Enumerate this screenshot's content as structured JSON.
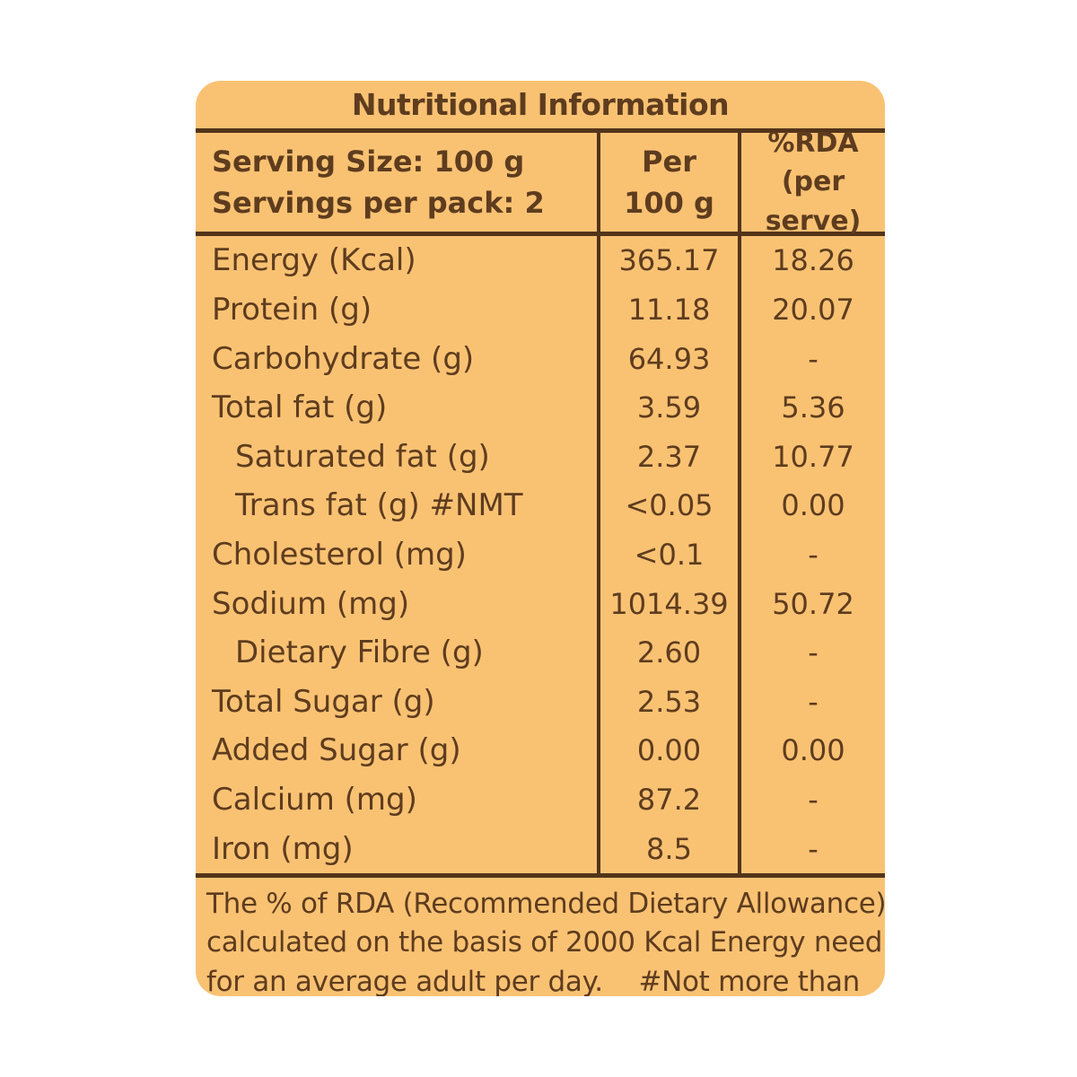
{
  "colors": {
    "page_background": "#ffffff",
    "panel_background": "#f9c273",
    "rule_color": "#53341a",
    "text_color": "#5e3c1e"
  },
  "title": "Nutritional Information",
  "header": {
    "serving_size": "Serving Size: 100 g",
    "servings_per_pack": "Servings per pack: 2",
    "per_col_line1": "Per",
    "per_col_line2": "100 g",
    "rda_col_line1": "%RDA",
    "rda_col_line2": "(per serve)"
  },
  "rows": [
    {
      "label": "Energy (Kcal)",
      "per_100g": "365.17",
      "rda_per_serve": "18.26",
      "indent": false
    },
    {
      "label": "Protein (g)",
      "per_100g": "11.18",
      "rda_per_serve": "20.07",
      "indent": false
    },
    {
      "label": "Carbohydrate (g)",
      "per_100g": "64.93",
      "rda_per_serve": "-",
      "indent": false
    },
    {
      "label": "Total fat (g)",
      "per_100g": "3.59",
      "rda_per_serve": "5.36",
      "indent": false
    },
    {
      "label": "Saturated fat (g)",
      "per_100g": "2.37",
      "rda_per_serve": "10.77",
      "indent": true
    },
    {
      "label": "Trans fat (g) #NMT",
      "per_100g": "<0.05",
      "rda_per_serve": "0.00",
      "indent": true
    },
    {
      "label": "Cholesterol (mg)",
      "per_100g": "<0.1",
      "rda_per_serve": "-",
      "indent": false
    },
    {
      "label": "Sodium (mg)",
      "per_100g": "1014.39",
      "rda_per_serve": "50.72",
      "indent": false
    },
    {
      "label": "Dietary Fibre (g)",
      "per_100g": "2.60",
      "rda_per_serve": "-",
      "indent": true
    },
    {
      "label": "Total Sugar (g)",
      "per_100g": "2.53",
      "rda_per_serve": "-",
      "indent": false
    },
    {
      "label": "Added Sugar (g)",
      "per_100g": "0.00",
      "rda_per_serve": "0.00",
      "indent": false
    },
    {
      "label": "Calcium (mg)",
      "per_100g": "87.2",
      "rda_per_serve": "-",
      "indent": false
    },
    {
      "label": "Iron (mg)",
      "per_100g": "8.5",
      "rda_per_serve": "-",
      "indent": false
    }
  ],
  "footer": {
    "line1": "The % of RDA (Recommended Dietary Allowance)",
    "line2": "calculated on the basis of 2000 Kcal Energy need",
    "line3_left": "for an average adult per day.",
    "line3_right": "#Not more than"
  }
}
